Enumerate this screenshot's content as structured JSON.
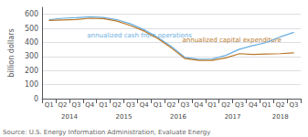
{
  "chart_data": {
    "type": "line",
    "ylabel": "billion dollars",
    "source": "Source: U.S. Energy Information Administration, Evaluate Energy",
    "categories": [
      "Q1",
      "Q2",
      "Q3",
      "Q4",
      "Q1",
      "Q2",
      "Q3",
      "Q4",
      "Q1",
      "Q2",
      "Q3",
      "Q4",
      "Q1",
      "Q2",
      "Q3",
      "Q4",
      "Q1",
      "Q2",
      "Q3"
    ],
    "year_groups": [
      {
        "label": "2014",
        "quarters": 4
      },
      {
        "label": "2015",
        "quarters": 4
      },
      {
        "label": "2016",
        "quarters": 4
      },
      {
        "label": "2017",
        "quarters": 4
      },
      {
        "label": "2018",
        "quarters": 3
      }
    ],
    "series": [
      {
        "name": "annualized cash from operations",
        "color": "#6aaee0",
        "values": [
          562,
          572,
          576,
          582,
          578,
          562,
          532,
          490,
          435,
          370,
          293,
          280,
          282,
          308,
          352,
          378,
          400,
          440,
          472
        ]
      },
      {
        "name": "annualized capital expenditure",
        "color": "#b87828",
        "values": [
          556,
          560,
          563,
          572,
          570,
          552,
          520,
          480,
          428,
          360,
          285,
          272,
          272,
          290,
          320,
          315,
          318,
          320,
          326
        ]
      }
    ],
    "annotations": [
      {
        "text": "annualized cash from operations",
        "x": 2.8,
        "y": 450,
        "color": "#6aaee0"
      },
      {
        "text": "annualized capital expenditure",
        "x": 9.8,
        "y": 415,
        "color": "#b87828"
      }
    ],
    "ylim": [
      0,
      650
    ],
    "yticks": [
      0,
      100,
      200,
      300,
      400,
      500,
      600
    ],
    "grid": true
  }
}
